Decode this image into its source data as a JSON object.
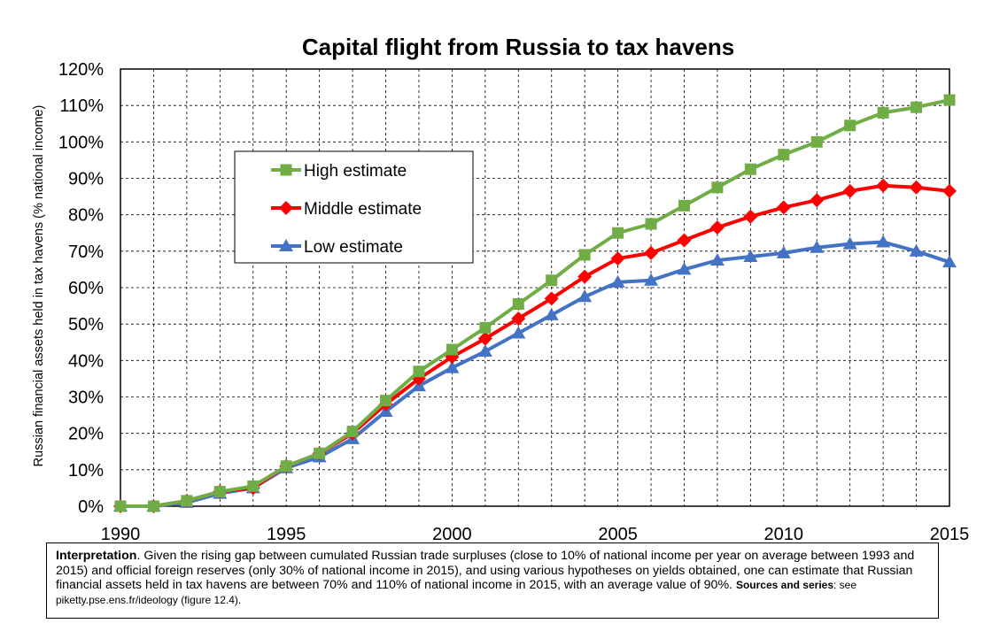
{
  "chart_data": {
    "type": "line",
    "title": "Capital flight from Russia to tax havens",
    "ylabel": "Russian financial assets held in tax havens (% national income)",
    "xlabel": "",
    "xlim": [
      1990,
      2015
    ],
    "ylim": [
      0,
      120
    ],
    "x_ticks": [
      "1990",
      "1995",
      "2000",
      "2005",
      "2010",
      "2015"
    ],
    "y_ticks": [
      "0%",
      "10%",
      "20%",
      "30%",
      "40%",
      "50%",
      "60%",
      "70%",
      "80%",
      "90%",
      "100%",
      "110%",
      "120%"
    ],
    "grid": true,
    "legend_position": "upper-left",
    "x": [
      1990,
      1991,
      1992,
      1993,
      1994,
      1995,
      1996,
      1997,
      1998,
      1999,
      2000,
      2001,
      2002,
      2003,
      2004,
      2005,
      2006,
      2007,
      2008,
      2009,
      2010,
      2011,
      2012,
      2013,
      2014,
      2015
    ],
    "series": [
      {
        "name": "High estimate",
        "color": "#70ad47",
        "marker": "square",
        "values": [
          0,
          0,
          1.5,
          4,
          5.5,
          11,
          14.5,
          20.5,
          29,
          37,
          43,
          49,
          55.5,
          62,
          69,
          75,
          77.5,
          82.5,
          87.5,
          92.5,
          96.5,
          100,
          104.5,
          108,
          109.5,
          111.5
        ]
      },
      {
        "name": "Middle estimate",
        "color": "#ff0000",
        "marker": "diamond",
        "values": [
          0,
          0,
          1.5,
          4,
          5,
          11,
          14.5,
          20,
          28,
          35,
          41,
          46,
          51.5,
          57,
          63,
          68,
          69.5,
          73,
          76.5,
          79.5,
          82,
          84,
          86.5,
          88,
          87.5,
          86.5
        ]
      },
      {
        "name": "Low estimate",
        "color": "#4472c4",
        "marker": "triangle",
        "values": [
          0,
          0,
          1,
          3.5,
          5,
          10.5,
          13.5,
          18.5,
          26,
          33,
          38,
          42.5,
          47.5,
          52.5,
          57.5,
          61.5,
          62,
          65,
          67.5,
          68.5,
          69.5,
          71,
          72,
          72.5,
          70,
          67
        ]
      }
    ]
  },
  "note": {
    "interp_label": "Interpretation",
    "interp_text": ". Given the rising gap between cumulated Russian trade surpluses (close to 10% of national income per year on average between 1993 and 2015) and official foreign reserves (only 30% of national income in 2015), and using various hypotheses on yields obtained, one can estimate that Russian financial assets held in tax havens are between 70% and 110% of national income in 2015, with an average value of 90%.",
    "sources_label": "Sources and series",
    "sources_text": ": see piketty.pse.ens.fr/ideology (figure 12.4)."
  }
}
